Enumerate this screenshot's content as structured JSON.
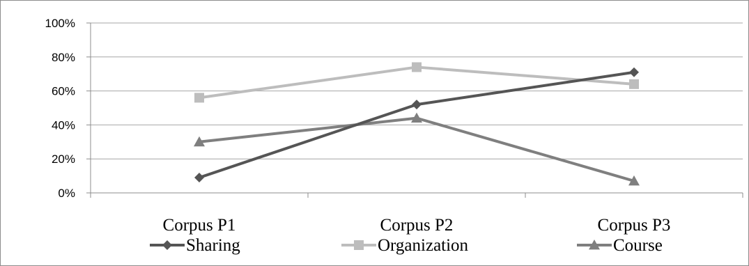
{
  "chart_data": {
    "type": "line",
    "title": "",
    "xlabel": "",
    "ylabel": "",
    "categories": [
      "Corpus P1",
      "Corpus P2",
      "Corpus P3"
    ],
    "ylim": [
      0,
      100
    ],
    "yticks": [
      "0%",
      "20%",
      "40%",
      "60%",
      "80%",
      "100%"
    ],
    "grid": true,
    "legend_position": "bottom",
    "series": [
      {
        "name": "Sharing",
        "values": [
          9,
          52,
          71
        ],
        "color": "#555555",
        "marker": "diamond"
      },
      {
        "name": "Organization",
        "values": [
          56,
          74,
          64
        ],
        "color": "#bdbdbd",
        "marker": "square"
      },
      {
        "name": "Course",
        "values": [
          30,
          44,
          7
        ],
        "color": "#7f7f7f",
        "marker": "triangle"
      }
    ]
  }
}
